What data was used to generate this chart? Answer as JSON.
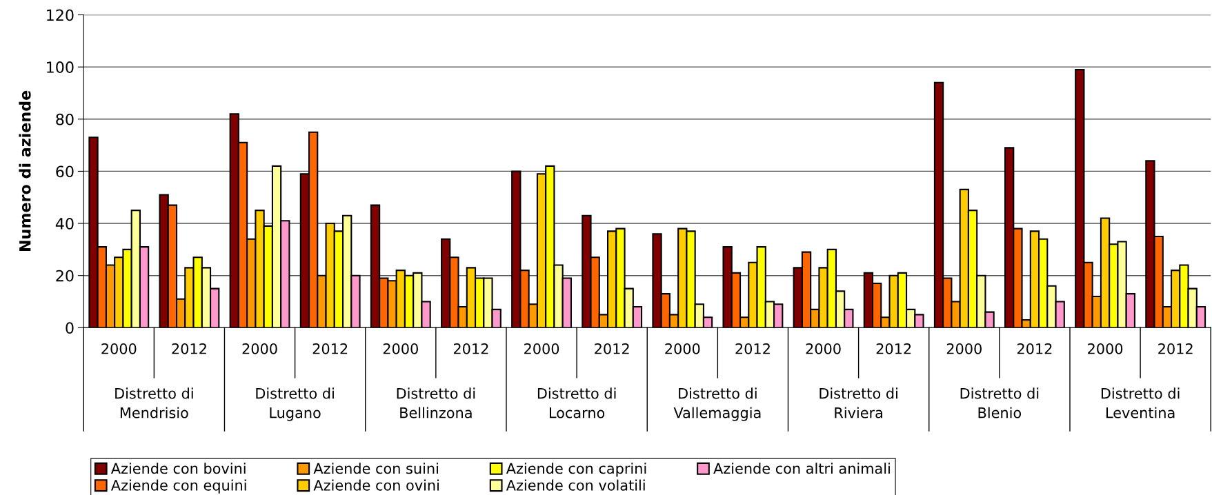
{
  "chart_data": {
    "type": "bar",
    "ylabel": "Numero di aziende",
    "categories": [
      "2000",
      "2012",
      "2000",
      "2012",
      "2000",
      "2012",
      "2000",
      "2012",
      "2000",
      "2012",
      "2000",
      "2012",
      "2000",
      "2012",
      "2000",
      "2012"
    ],
    "annotations": [
      "Distretto di\nMendrisio",
      "Distretto di\nLugano",
      "Distretto di\nBellinzona",
      "Distretto di\nLocarno",
      "Distretto di\nVallemaggia",
      "Distretto di\nRiviera",
      "Distretto di\nBlenio",
      "Distretto di\nLeventina"
    ],
    "series": [
      {
        "name": "Aziende con bovini",
        "color": "#800000",
        "values": [
          73,
          51,
          82,
          59,
          47,
          34,
          60,
          43,
          36,
          31,
          23,
          21,
          94,
          69,
          99,
          64
        ]
      },
      {
        "name": "Aziende con equini",
        "color": "#ff6600",
        "values": [
          31,
          47,
          71,
          75,
          19,
          27,
          22,
          27,
          13,
          21,
          29,
          17,
          19,
          38,
          25,
          35
        ]
      },
      {
        "name": "Aziende con suini",
        "color": "#ff9900",
        "values": [
          24,
          11,
          34,
          20,
          18,
          8,
          9,
          5,
          5,
          4,
          7,
          4,
          10,
          3,
          12,
          8
        ]
      },
      {
        "name": "Aziende con ovini",
        "color": "#ffcc00",
        "values": [
          27,
          23,
          45,
          40,
          22,
          23,
          59,
          37,
          38,
          25,
          23,
          20,
          53,
          37,
          42,
          22
        ]
      },
      {
        "name": "Aziende con caprini",
        "color": "#ffff00",
        "values": [
          30,
          27,
          39,
          37,
          20,
          19,
          62,
          38,
          37,
          31,
          30,
          21,
          45,
          34,
          32,
          24
        ]
      },
      {
        "name": "Aziende con volatili",
        "color": "#ffff99",
        "values": [
          45,
          23,
          62,
          43,
          21,
          19,
          24,
          15,
          9,
          10,
          14,
          7,
          20,
          16,
          33,
          15
        ]
      },
      {
        "name": "Aziende con altri animali",
        "color": "#ff99cc",
        "values": [
          31,
          15,
          41,
          20,
          10,
          7,
          19,
          8,
          4,
          9,
          7,
          5,
          6,
          10,
          13,
          8
        ]
      }
    ],
    "ylim": [
      0,
      120
    ],
    "yticks": [
      0,
      20,
      40,
      60,
      80,
      100,
      120
    ],
    "grid": "y",
    "legend": "bottom"
  }
}
